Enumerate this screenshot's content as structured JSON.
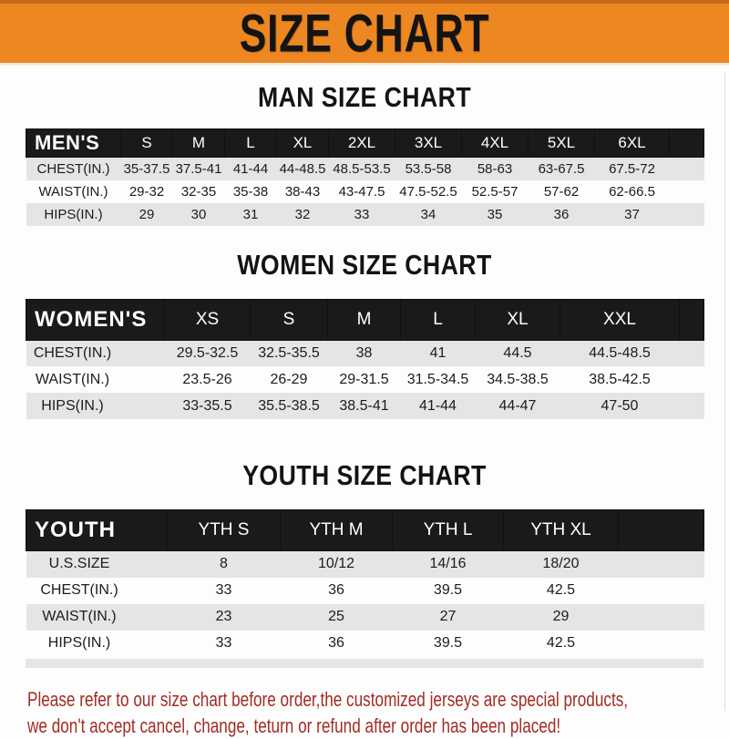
{
  "banner": {
    "title": "SIZE CHART"
  },
  "sections": [
    {
      "title": "MAN SIZE CHART",
      "header_label": "MEN'S",
      "columns": [
        "S",
        "M",
        "L",
        "XL",
        "2XL",
        "3XL",
        "4XL",
        "5XL",
        "6XL"
      ],
      "rows": [
        {
          "label": "CHEST(IN.)",
          "values": [
            "35-37.5",
            "37.5-41",
            "41-44",
            "44-48.5",
            "48.5-53.5",
            "53.5-58",
            "58-63",
            "63-67.5",
            "67.5-72"
          ]
        },
        {
          "label": "WAIST(IN.)",
          "values": [
            "29-32",
            "32-35",
            "35-38",
            "38-43",
            "43-47.5",
            "47.5-52.5",
            "52.5-57",
            "57-62",
            "62-66.5"
          ]
        },
        {
          "label": "HIPS(IN.)",
          "values": [
            "29",
            "30",
            "31",
            "32",
            "33",
            "34",
            "35",
            "36",
            "37"
          ]
        }
      ]
    },
    {
      "title": "WOMEN SIZE CHART",
      "header_label": "WOMEN'S",
      "columns": [
        "XS",
        "S",
        "M",
        "L",
        "XL",
        "XXL"
      ],
      "rows": [
        {
          "label": "CHEST(IN.)",
          "values": [
            "29.5-32.5",
            "32.5-35.5",
            "38",
            "41",
            "44.5",
            "44.5-48.5"
          ]
        },
        {
          "label": "WAIST(IN.)",
          "values": [
            "23.5-26",
            "26-29",
            "29-31.5",
            "31.5-34.5",
            "34.5-38.5",
            "38.5-42.5"
          ]
        },
        {
          "label": "HIPS(IN.)",
          "values": [
            "33-35.5",
            "35.5-38.5",
            "38.5-41",
            "41-44",
            "44-47",
            "47-50"
          ]
        }
      ]
    },
    {
      "title": "YOUTH SIZE CHART",
      "header_label": "YOUTH",
      "columns": [
        "YTH S",
        "YTH M",
        "YTH L",
        "YTH XL"
      ],
      "rows": [
        {
          "label": "U.S.SIZE",
          "values": [
            "8",
            "10/12",
            "14/16",
            "18/20"
          ]
        },
        {
          "label": "CHEST(IN.)",
          "values": [
            "33",
            "36",
            "39.5",
            "42.5"
          ]
        },
        {
          "label": "WAIST(IN.)",
          "values": [
            "23",
            "25",
            "27",
            "29"
          ]
        },
        {
          "label": "HIPS(IN.)",
          "values": [
            "33",
            "36",
            "39.5",
            "42.5"
          ]
        }
      ]
    }
  ],
  "footer": {
    "line1": "Please refer to our size chart before order,the customized jerseys are special products,",
    "line2": "we don't accept cancel, change, teturn or refund after order has been placed!"
  },
  "colors": {
    "banner_orange": "#ED8722",
    "banner_top_border": "#C96A1B",
    "table_header_black": "#1A1A1A",
    "row_gray": "#E5E5E6",
    "footer_red": "#A32C24"
  }
}
